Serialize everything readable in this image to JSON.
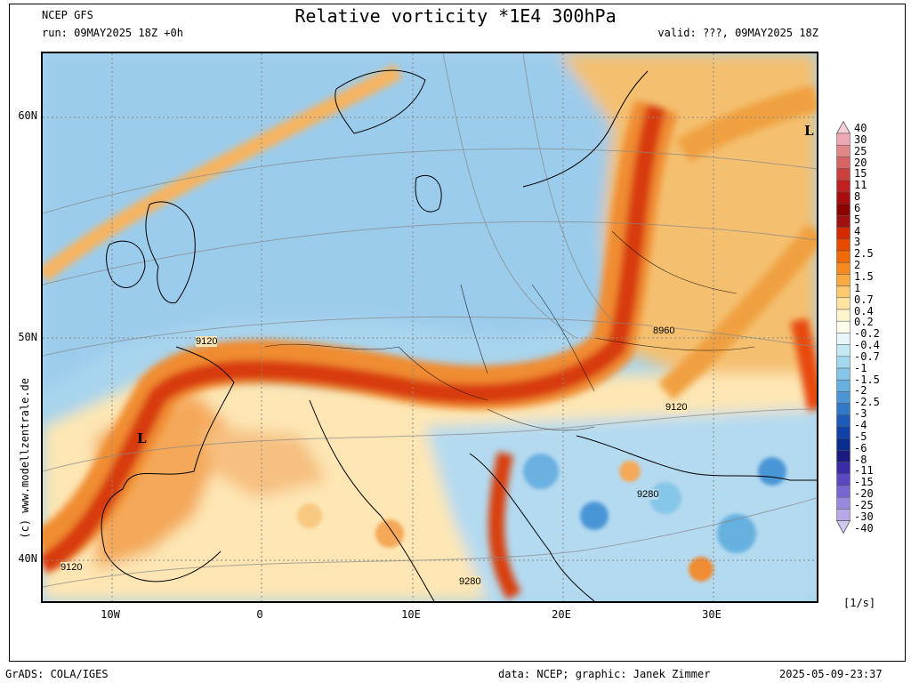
{
  "header": {
    "model": "NCEP GFS",
    "run": "run: 09MAY2025 18Z +0h",
    "title": "Relative vorticity *1E4 300hPa",
    "valid": "valid: ???, 09MAY2025 18Z"
  },
  "axes": {
    "lat_labels": [
      "60N",
      "50N",
      "40N"
    ],
    "lon_labels": [
      "10W",
      "0",
      "10E",
      "20E",
      "30E"
    ]
  },
  "map": {
    "pressure_labels": [
      {
        "text": "9120"
      },
      {
        "text": "8960"
      },
      {
        "text": "9120"
      },
      {
        "text": "9280"
      },
      {
        "text": "9280"
      },
      {
        "text": "9120"
      }
    ],
    "lows": [
      {
        "text": "L"
      },
      {
        "text": "L"
      }
    ]
  },
  "colorbar": {
    "unit": "[1/s]",
    "levels": [
      "40",
      "30",
      "25",
      "20",
      "15",
      "11",
      "8",
      "6",
      "5",
      "4",
      "3",
      "2.5",
      "2",
      "1.5",
      "1",
      "0.7",
      "0.4",
      "0.2",
      "-0.2",
      "-0.4",
      "-0.7",
      "-1",
      "-1.5",
      "-2",
      "-2.5",
      "-3",
      "-4",
      "-5",
      "-6",
      "-8",
      "-11",
      "-15",
      "-20",
      "-25",
      "-30",
      "-40"
    ],
    "colors": [
      "#f5d0d8",
      "#eeaab4",
      "#e08888",
      "#d86565",
      "#cc4040",
      "#c02020",
      "#a80c0c",
      "#8c0000",
      "#a01010",
      "#d42800",
      "#e84a00",
      "#f06a08",
      "#f48a20",
      "#f8aa40",
      "#fcc870",
      "#fde4a0",
      "#fef4d0",
      "#fffbec",
      "#e6f6fa",
      "#c4e8f4",
      "#a4d8ee",
      "#86c6e8",
      "#66b0e0",
      "#4a96d6",
      "#3278c8",
      "#1e5ab8",
      "#1040a8",
      "#082c90",
      "#1a1a80",
      "#3a2ca8",
      "#5a48c0",
      "#7a66d0",
      "#9a88dc",
      "#b8a8e6",
      "#d0c8f0"
    ]
  },
  "side_label": "(c) www.modellzentrale.de",
  "footer": {
    "left": "GrADS: COLA/IGES",
    "middle": "data: NCEP; graphic: Janek Zimmer",
    "right": "2025-05-09-23:37"
  }
}
